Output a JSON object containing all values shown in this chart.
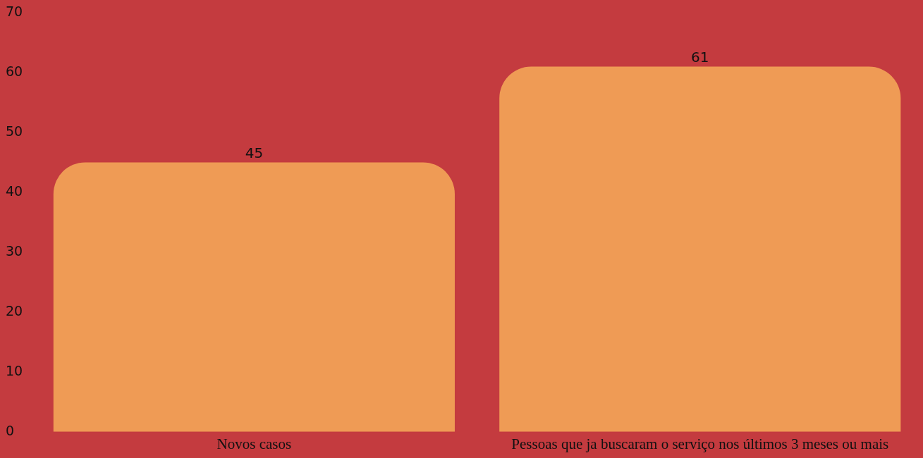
{
  "chart_data": {
    "type": "bar",
    "categories": [
      "Novos casos",
      "Pessoas que ja buscaram o serviço nos últimos 3 meses ou mais"
    ],
    "values": [
      45,
      61
    ],
    "color": "#ef9b55",
    "ylim": [
      0,
      70
    ],
    "yticks": [
      0,
      10,
      20,
      30,
      40,
      50,
      60,
      70
    ],
    "grid": false,
    "legend": false,
    "data_labels": true
  }
}
